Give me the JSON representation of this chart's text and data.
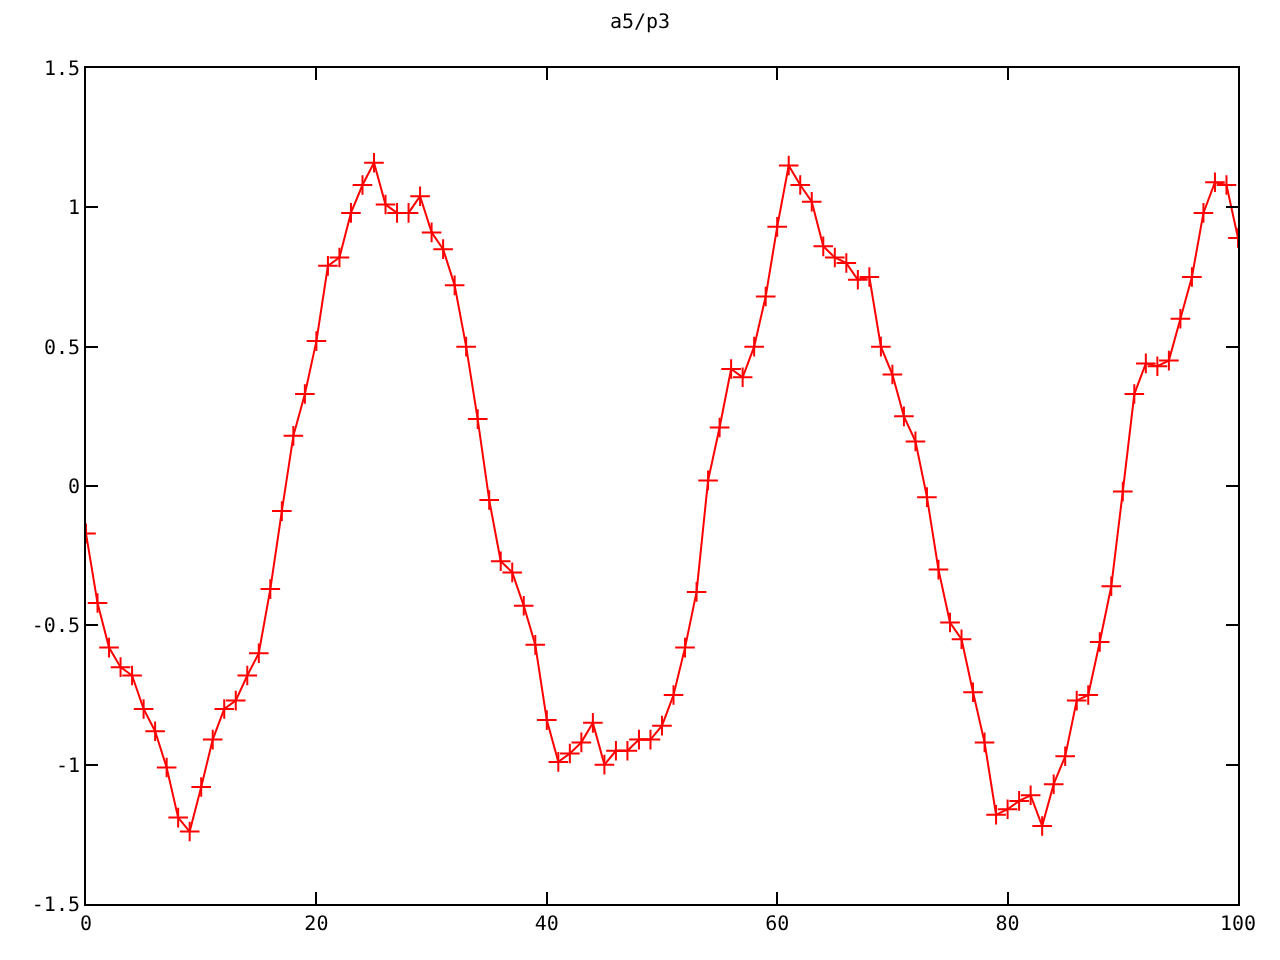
{
  "chart_data": {
    "type": "line",
    "title": "a5/p3",
    "x": [
      0,
      1,
      2,
      3,
      4,
      5,
      6,
      7,
      8,
      9,
      10,
      11,
      12,
      13,
      14,
      15,
      16,
      17,
      18,
      19,
      20,
      21,
      22,
      23,
      24,
      25,
      26,
      27,
      28,
      29,
      30,
      31,
      32,
      33,
      34,
      35,
      36,
      37,
      38,
      39,
      40,
      41,
      42,
      43,
      44,
      45,
      46,
      47,
      48,
      49,
      50,
      51,
      52,
      53,
      54,
      55,
      56,
      57,
      58,
      59,
      60,
      61,
      62,
      63,
      64,
      65,
      66,
      67,
      68,
      69,
      70,
      71,
      72,
      73,
      74,
      75,
      76,
      77,
      78,
      79,
      80,
      81,
      82,
      83,
      84,
      85,
      86,
      87,
      88,
      89,
      90,
      91,
      92,
      93,
      94,
      95,
      96,
      97,
      98,
      99,
      100
    ],
    "series": [
      {
        "color": "#ff0000",
        "values": [
          -0.17,
          -0.42,
          -0.58,
          -0.65,
          -0.68,
          -0.8,
          -0.88,
          -1.01,
          -1.19,
          -1.24,
          -1.08,
          -0.91,
          -0.8,
          -0.77,
          -0.68,
          -0.6,
          -0.37,
          -0.09,
          0.18,
          0.33,
          0.52,
          0.79,
          0.82,
          0.98,
          1.08,
          1.16,
          1.01,
          0.98,
          0.98,
          1.04,
          0.91,
          0.85,
          0.72,
          0.5,
          0.24,
          -0.05,
          -0.27,
          -0.31,
          -0.43,
          -0.57,
          -0.84,
          -0.99,
          -0.96,
          -0.92,
          -0.85,
          -1.0,
          -0.95,
          -0.95,
          -0.91,
          -0.91,
          -0.86,
          -0.75,
          -0.58,
          -0.38,
          0.02,
          0.21,
          0.42,
          0.39,
          0.5,
          0.68,
          0.93,
          1.15,
          1.08,
          1.02,
          0.86,
          0.82,
          0.8,
          0.74,
          0.75,
          0.5,
          0.4,
          0.25,
          0.16,
          -0.04,
          -0.3,
          -0.49,
          -0.55,
          -0.74,
          -0.92,
          -1.18,
          -1.16,
          -1.13,
          -1.11,
          -1.22,
          -1.07,
          -0.97,
          -0.77,
          -0.75,
          -0.56,
          -0.36,
          -0.02,
          0.33,
          0.44,
          0.43,
          0.45,
          0.6,
          0.75,
          0.98,
          1.09,
          1.08,
          0.89
        ]
      }
    ],
    "xlim": [
      0,
      100
    ],
    "xticks": [
      0,
      20,
      40,
      60,
      80,
      100
    ],
    "ylim": [
      -1.5,
      1.5
    ],
    "yticks": [
      -1.5,
      -1,
      -0.5,
      0,
      0.5,
      1,
      1.5
    ],
    "marker": "cross",
    "line_style": "solid"
  }
}
